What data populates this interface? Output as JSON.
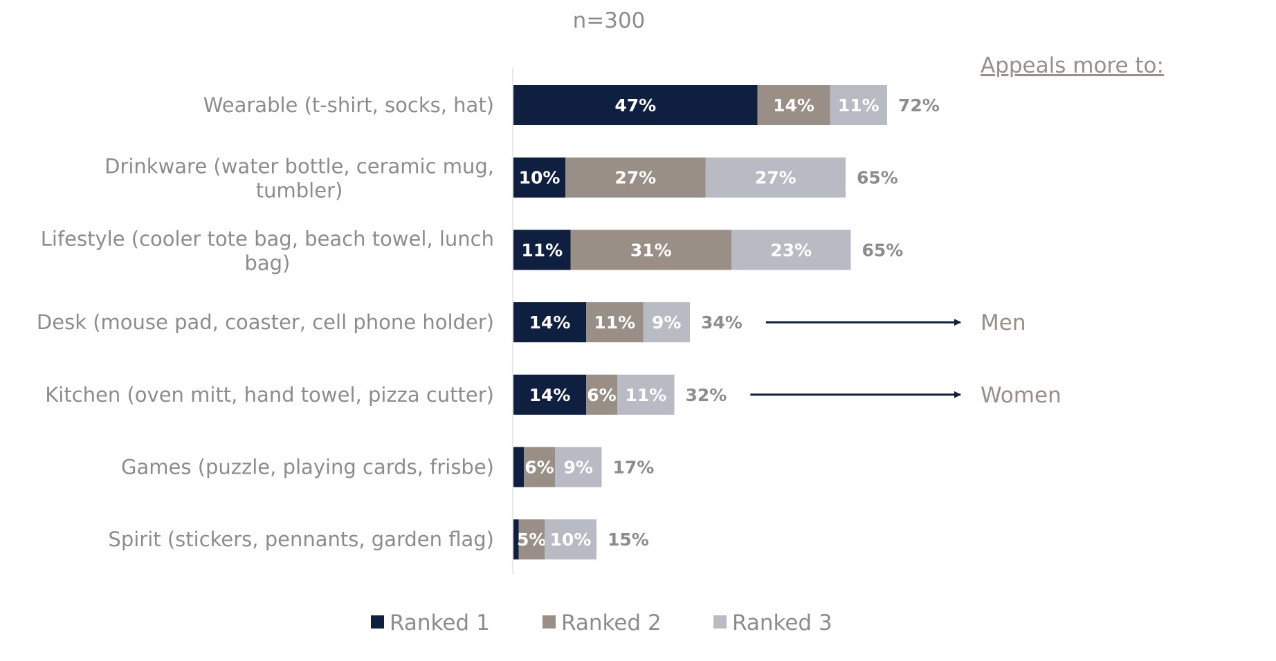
{
  "note": "n=300",
  "appeals_header": "Appeals more to:",
  "colors": {
    "rank1": "#0e1f40",
    "rank2": "#9a8f86",
    "rank3": "#b8bbc4",
    "text": "#8c8c8c",
    "appeal": "#9a8f86",
    "arrow": "#0e1f40"
  },
  "chart_data": {
    "type": "bar",
    "orientation": "horizontal",
    "stacked": true,
    "categories": [
      [
        "Wearable (t-shirt, socks, hat)"
      ],
      [
        "Drinkware (water bottle, ceramic mug,",
        "tumbler)"
      ],
      [
        "Lifestyle (cooler tote bag, beach towel, lunch",
        "bag)"
      ],
      [
        "Desk (mouse pad, coaster, cell phone holder)"
      ],
      [
        "Kitchen (oven mitt, hand towel, pizza cutter)"
      ],
      [
        "Games (puzzle, playing cards, frisbe)"
      ],
      [
        "Spirit (stickers, pennants, garden flag)"
      ]
    ],
    "series": [
      {
        "name": "Ranked 1",
        "values": [
          47,
          10,
          11,
          14,
          14,
          2,
          1
        ],
        "labels": [
          "47%",
          "10%",
          "11%",
          "14%",
          "14%",
          "",
          ""
        ]
      },
      {
        "name": "Ranked 2",
        "values": [
          14,
          27,
          31,
          11,
          6,
          6,
          5
        ],
        "labels": [
          "14%",
          "27%",
          "31%",
          "11%",
          "6%",
          "6%",
          "5%"
        ]
      },
      {
        "name": "Ranked 3",
        "values": [
          11,
          27,
          23,
          9,
          11,
          9,
          10
        ],
        "labels": [
          "11%",
          "27%",
          "23%",
          "9%",
          "11%",
          "9%",
          "10%"
        ]
      }
    ],
    "totals": [
      "72%",
      "65%",
      "65%",
      "34%",
      "32%",
      "17%",
      "15%"
    ],
    "xlim": [
      0,
      100
    ],
    "axis_labels_shown": false,
    "grid": false,
    "legend": "bottom",
    "annotations": [
      {
        "category_index": 3,
        "text": "Men"
      },
      {
        "category_index": 4,
        "text": "Women"
      }
    ]
  }
}
